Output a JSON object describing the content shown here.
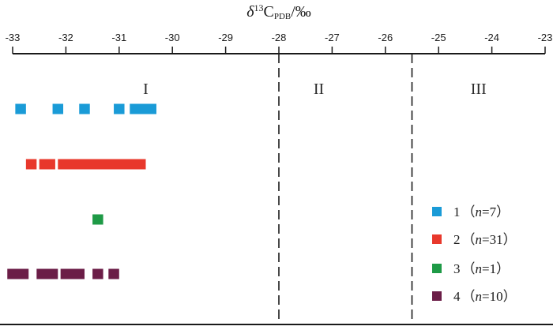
{
  "chart_data": {
    "type": "range-strip",
    "x_axis": {
      "title": {
        "prefix": "δ",
        "sup": "13",
        "main": "C",
        "sub": "PDB",
        "suffix": "/‰"
      },
      "range": [
        -33,
        -23
      ],
      "ticks": [
        -33,
        -32,
        -31,
        -30,
        -29,
        -28,
        -27,
        -26,
        -25,
        -24,
        -23
      ],
      "position": "top"
    },
    "zones": [
      {
        "label": "I",
        "from": -33,
        "to": -28,
        "label_at": -30.5
      },
      {
        "label": "II",
        "from": -28,
        "to": -25.5,
        "label_at": -27.25
      },
      {
        "label": "III",
        "from": -25.5,
        "to": -23,
        "label_at": -24.25
      }
    ],
    "boundaries": [
      -28,
      -25.5
    ],
    "series": [
      {
        "id": "1",
        "n": 7,
        "color": "#1a9bd7",
        "segments": [
          [
            -32.95,
            -32.75
          ],
          [
            -32.25,
            -32.05
          ],
          [
            -31.75,
            -31.55
          ],
          [
            -31.1,
            -30.9
          ],
          [
            -30.8,
            -30.3
          ]
        ]
      },
      {
        "id": "2",
        "n": 31,
        "color": "#e8382c",
        "segments": [
          [
            -32.75,
            -32.55
          ],
          [
            -32.5,
            -32.2
          ],
          [
            -32.15,
            -30.5
          ]
        ]
      },
      {
        "id": "3",
        "n": 1,
        "color": "#1e9a46",
        "segments": [
          [
            -31.5,
            -31.3
          ]
        ]
      },
      {
        "id": "4",
        "n": 10,
        "color": "#6b1d47",
        "segments": [
          [
            -33.1,
            -32.7
          ],
          [
            -32.55,
            -32.15
          ],
          [
            -32.1,
            -31.65
          ],
          [
            -31.5,
            -31.3
          ],
          [
            -31.2,
            -31.0
          ]
        ]
      }
    ],
    "legend": {
      "position": "bottom-right",
      "items": [
        {
          "num": "1",
          "n_label": "n",
          "eq": "=",
          "count": "7"
        },
        {
          "num": "2",
          "n_label": "n",
          "eq": "=",
          "count": "31"
        },
        {
          "num": "3",
          "n_label": "n",
          "eq": "=",
          "count": "1"
        },
        {
          "num": "4",
          "n_label": "n",
          "eq": "=",
          "count": "10"
        }
      ]
    }
  }
}
